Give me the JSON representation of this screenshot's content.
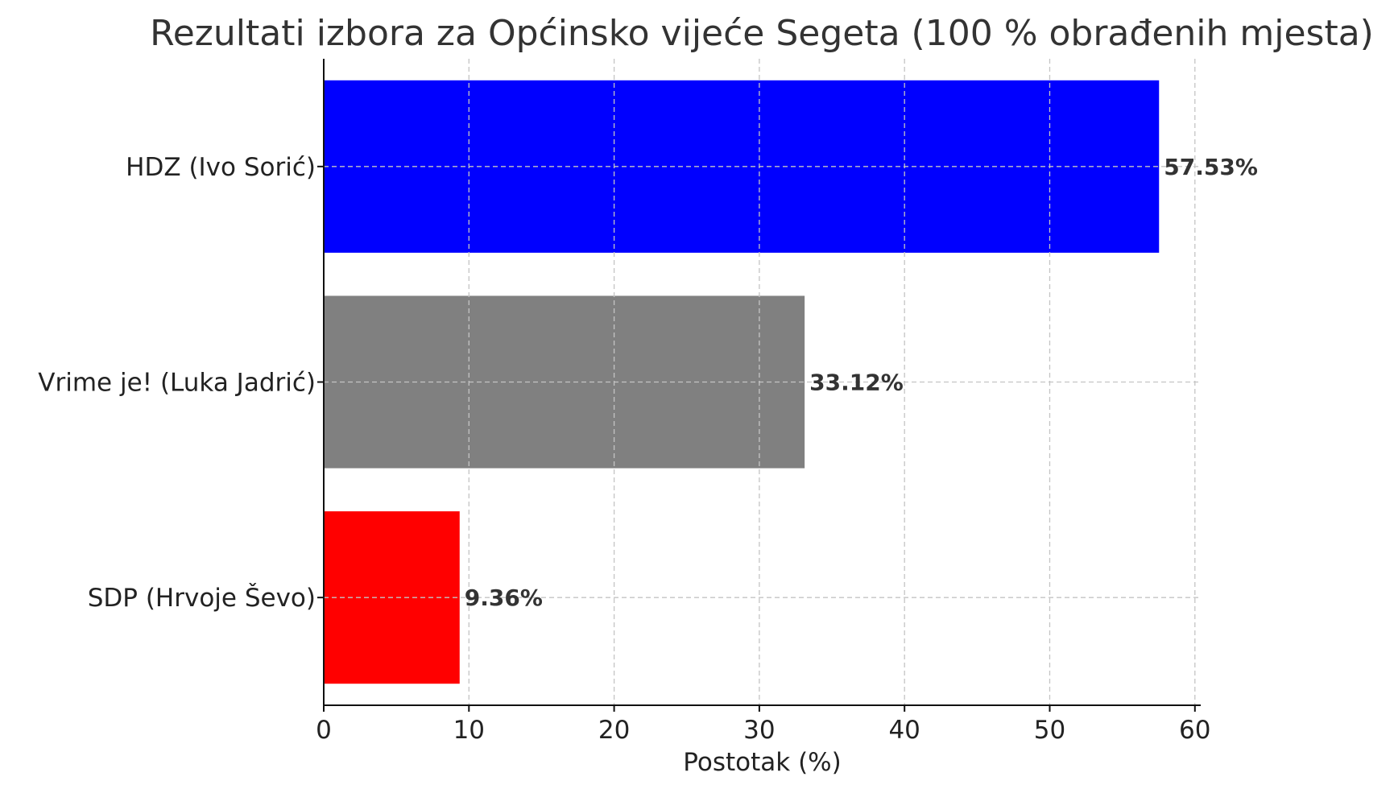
{
  "chart_data": {
    "type": "bar",
    "orientation": "horizontal",
    "title": "Rezultati izbora za Općinsko vijeće Segeta (100 % obrađenih mjesta)",
    "xlabel": "Postotak (%)",
    "ylabel": "",
    "xlim": [
      0,
      60.4
    ],
    "xticks": [
      0,
      10,
      20,
      30,
      40,
      50,
      60
    ],
    "xtick_labels": [
      "0",
      "10",
      "20",
      "30",
      "40",
      "50",
      "60"
    ],
    "grid": true,
    "categories": [
      "HDZ (Ivo Sorić)",
      "Vrime je! (Luka Jadrić)",
      "SDP (Hrvoje Ševo)"
    ],
    "values": [
      57.53,
      33.12,
      9.36
    ],
    "data_labels": [
      "57.53%",
      "33.12%",
      "9.36%"
    ],
    "colors": [
      "#0000ff",
      "#808080",
      "#ff0000"
    ]
  }
}
